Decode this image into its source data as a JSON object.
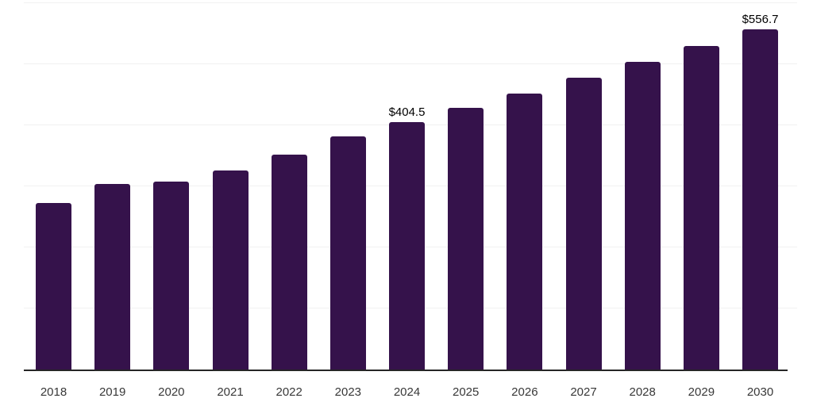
{
  "chart_data": {
    "type": "bar",
    "title": "",
    "xlabel": "",
    "ylabel": "",
    "categories": [
      "2018",
      "2019",
      "2020",
      "2021",
      "2022",
      "2023",
      "2024",
      "2025",
      "2026",
      "2027",
      "2028",
      "2029",
      "2030"
    ],
    "values": [
      273,
      303,
      308,
      326,
      352,
      381,
      404.5,
      428,
      452,
      477,
      503,
      529,
      556.7
    ],
    "data_labels": {
      "2024": "$404.5",
      "2030": "$556.7"
    },
    "ylim": [
      0,
      600
    ],
    "gridline_interval": 100,
    "grid": true,
    "legend": false,
    "y_axis_labels_visible": false,
    "colors": {
      "bar": "#35124B",
      "axis": "#262626",
      "gridline": "#F1F1F1",
      "tick_label": "#383838",
      "data_label": "#000000",
      "background": "#FFFFFF"
    }
  }
}
